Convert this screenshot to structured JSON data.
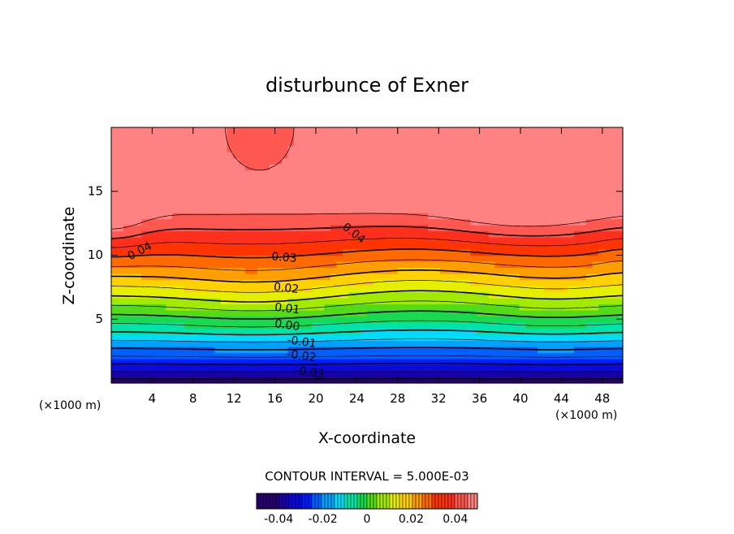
{
  "chart_data": {
    "type": "contour",
    "title": "disturbunce of Exner",
    "xlabel": "X-coordinate",
    "ylabel": "Z-coordinate",
    "x_unit_left": "(×1000 m)",
    "x_unit_right": "(×1000 m)",
    "xlim": [
      0,
      50
    ],
    "ylim": [
      0,
      20
    ],
    "x_ticks": [
      4,
      8,
      12,
      16,
      20,
      24,
      28,
      32,
      36,
      40,
      44,
      48
    ],
    "x_tick_labels": [
      "4",
      "8",
      "12",
      "16",
      "20",
      "24",
      "28",
      "32",
      "36",
      "40",
      "44",
      "48"
    ],
    "y_ticks": [
      5,
      10,
      15
    ],
    "y_tick_labels": [
      "5",
      "10",
      "15"
    ],
    "contour_interval_text": "CONTOUR INTERVAL = 5.000E-03",
    "contour_levels": [
      -0.04,
      -0.035,
      -0.03,
      -0.025,
      -0.02,
      -0.015,
      -0.01,
      -0.005,
      0.0,
      0.005,
      0.01,
      0.015,
      0.02,
      0.025,
      0.03,
      0.035,
      0.04,
      0.045
    ],
    "contour_labels": [
      {
        "text": "0.04",
        "x": 2.8,
        "y": 10.3,
        "angle": -28
      },
      {
        "text": "0.04",
        "x": 23.7,
        "y": 11.7,
        "angle": 38
      },
      {
        "text": "0.03",
        "x": 16.9,
        "y": 9.8,
        "angle": 5
      },
      {
        "text": "0.02",
        "x": 17.1,
        "y": 7.4,
        "angle": 6
      },
      {
        "text": "0.01",
        "x": 17.2,
        "y": 5.8,
        "angle": 7
      },
      {
        "text": "0.00",
        "x": 17.2,
        "y": 4.5,
        "angle": 8
      },
      {
        "text": "-0.01",
        "x": 18.6,
        "y": 3.2,
        "angle": 8
      },
      {
        "text": "-0.02",
        "x": 18.6,
        "y": 2.1,
        "angle": 8
      },
      {
        "text": "-0.03",
        "x": 19.4,
        "y": 0.8,
        "angle": 8
      }
    ],
    "field_features": {
      "min_value": -0.043,
      "max_value": 0.047,
      "high_centers": [
        {
          "x": 0.0,
          "z": 13.5,
          "value": 0.047
        },
        {
          "x": 40.5,
          "z": 14.5,
          "value": 0.047
        }
      ],
      "col_center": {
        "x": 14.5,
        "z": 14.5
      },
      "low_center": {
        "x": 16,
        "z": 0.5,
        "value": -0.043
      }
    },
    "colorbar": {
      "min": -0.05,
      "max": 0.05,
      "tick_values": [
        -0.04,
        -0.02,
        0,
        0.02,
        0.04
      ],
      "tick_labels": [
        "-0.04",
        "-0.02",
        "0",
        "0.02",
        "0.04"
      ]
    }
  }
}
